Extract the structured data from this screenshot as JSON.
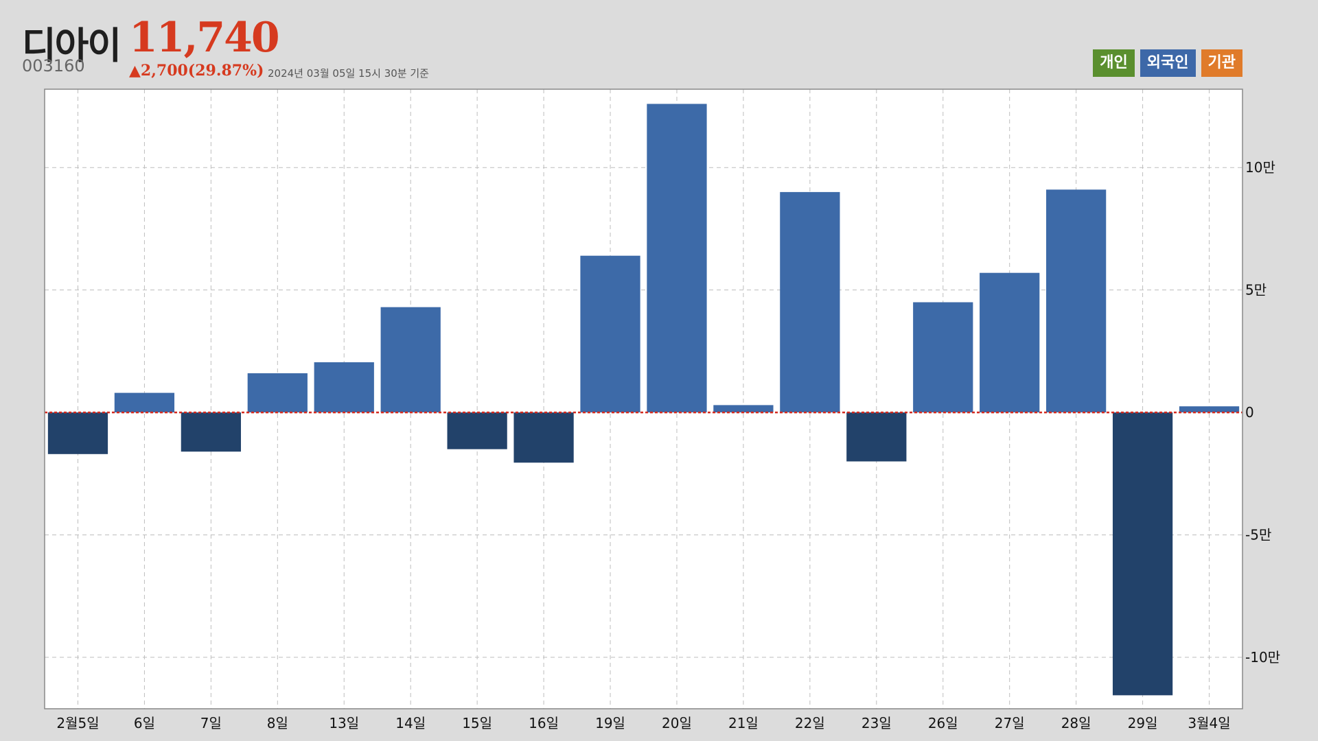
{
  "stock": {
    "name": "디아이",
    "price": "11,740",
    "code": "003160",
    "change": "▲2,700(29.87%)",
    "as_of": "2024년 03월 05일 15시 30분 기준"
  },
  "legend": [
    {
      "label": "개인",
      "color": "#5a8f2e"
    },
    {
      "label": "외국인",
      "color": "#3d68a8"
    },
    {
      "label": "기관",
      "color": "#e07b2a"
    }
  ],
  "colors": {
    "positive_bar": "#3d6aa8",
    "negative_bar": "#22426a",
    "zero_line": "#d42a1e",
    "grid": "#bdbdbd",
    "plot_bg": "#ffffff"
  },
  "chart_data": {
    "type": "bar",
    "series_name": "외국인",
    "categories": [
      "2월5일",
      "6일",
      "7일",
      "8일",
      "13일",
      "14일",
      "15일",
      "16일",
      "19일",
      "20일",
      "21일",
      "22일",
      "23일",
      "26일",
      "27일",
      "28일",
      "29일",
      "3월4일"
    ],
    "values": [
      -17000,
      8000,
      -16000,
      16000,
      20500,
      43000,
      -15000,
      -20500,
      64000,
      126000,
      3000,
      90000,
      -20000,
      45000,
      57000,
      91000,
      -115500,
      2500
    ],
    "ylim": [
      -121000,
      132000
    ],
    "yticks": [
      {
        "value": 100000,
        "label": "10만"
      },
      {
        "value": 50000,
        "label": "5만"
      },
      {
        "value": 0,
        "label": "0"
      },
      {
        "value": -50000,
        "label": "-5만"
      },
      {
        "value": -100000,
        "label": "-10만"
      }
    ],
    "grid": true,
    "title": "",
    "xlabel": "",
    "ylabel": ""
  }
}
